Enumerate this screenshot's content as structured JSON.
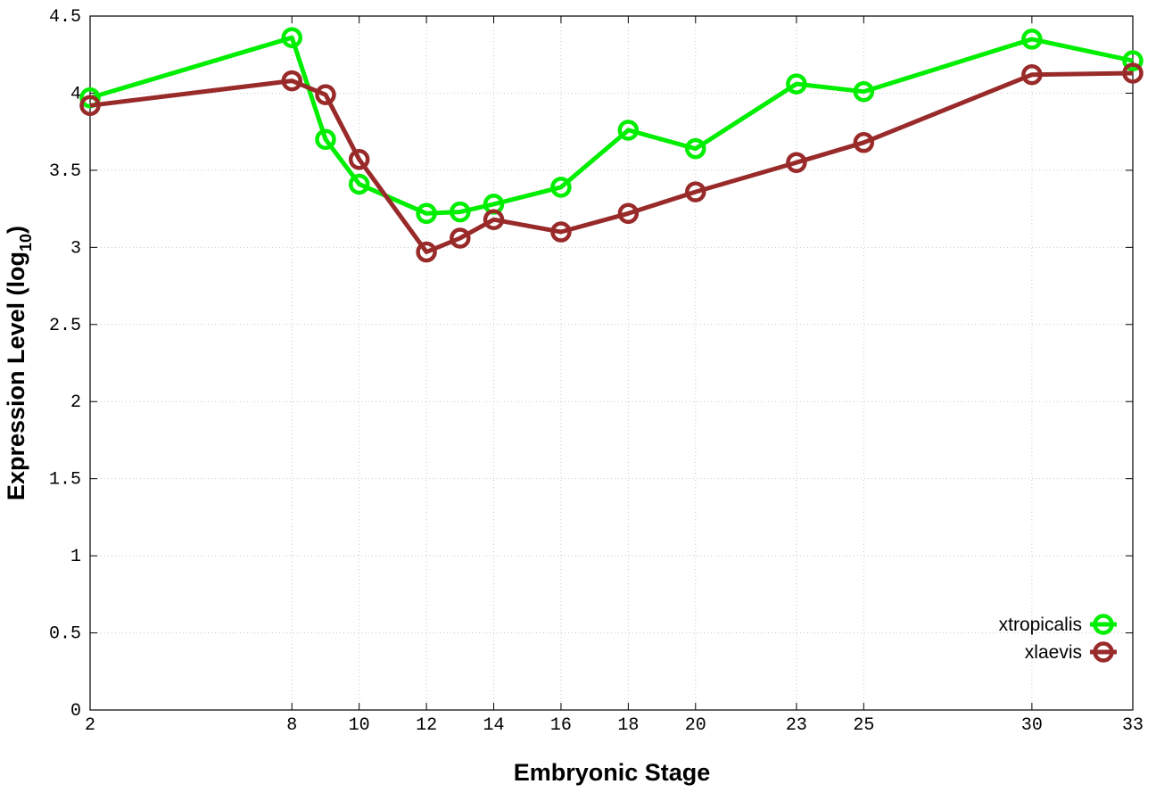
{
  "chart_data": {
    "type": "line",
    "xlabel": "Embryonic Stage",
    "ylabel": "Expression Level (log",
    "ylabel_sub": "10",
    "ylabel_close": ")",
    "x": [
      2,
      8,
      9,
      10,
      12,
      13,
      14,
      16,
      18,
      20,
      23,
      25,
      30,
      33
    ],
    "x_ticks": [
      2,
      8,
      10,
      12,
      14,
      16,
      18,
      20,
      23,
      25,
      30,
      33
    ],
    "x_tick_labels": [
      "2",
      "8",
      "10",
      "12",
      "14",
      "16",
      "18",
      "20",
      "23",
      "25",
      "30",
      "33"
    ],
    "y_ticks": [
      0,
      0.5,
      1,
      1.5,
      2,
      2.5,
      3,
      3.5,
      4,
      4.5
    ],
    "y_tick_labels": [
      "0",
      "0.5",
      "1",
      "1.5",
      "2",
      "2.5",
      "3",
      "3.5",
      "4",
      "4.5"
    ],
    "xlim": [
      2,
      33
    ],
    "ylim": [
      0,
      4.5
    ],
    "grid": true,
    "legend_position": "bottom-right",
    "series": [
      {
        "name": "xtropicalis",
        "color": "#00ee00",
        "values": [
          3.97,
          4.36,
          3.7,
          3.41,
          3.22,
          3.23,
          3.28,
          3.39,
          3.76,
          3.64,
          4.06,
          4.01,
          4.35,
          4.21
        ]
      },
      {
        "name": "xlaevis",
        "color": "#992a2a",
        "values": [
          3.92,
          4.08,
          3.99,
          3.57,
          2.97,
          3.06,
          3.18,
          3.1,
          3.22,
          3.36,
          3.55,
          3.68,
          4.12,
          4.13
        ]
      }
    ]
  }
}
